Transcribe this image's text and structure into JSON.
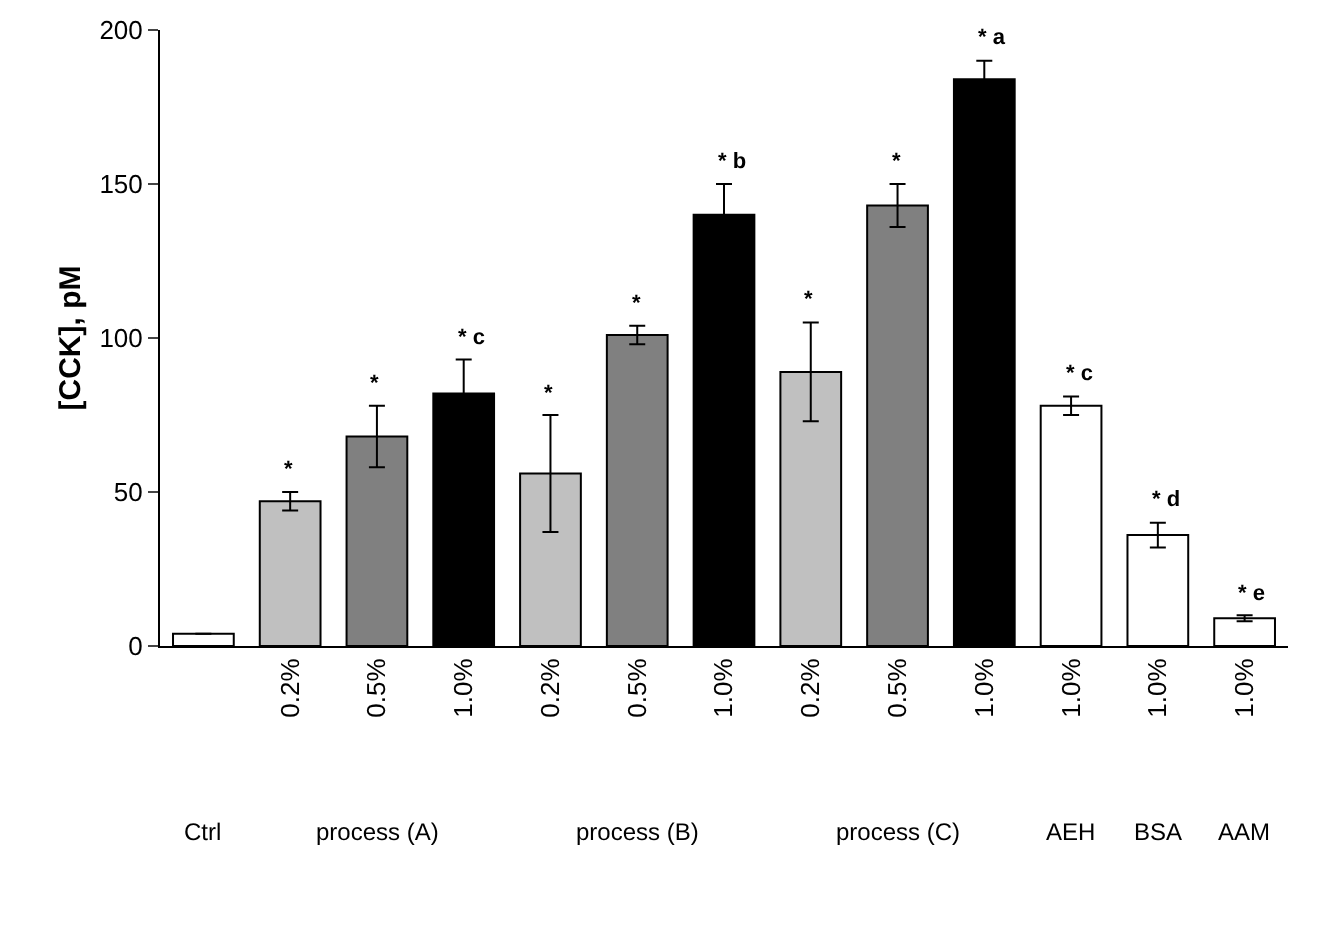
{
  "chart_data": {
    "type": "bar",
    "ylabel": "[CCK], pM",
    "categories": [
      null,
      "0.2%",
      "0.5%",
      "1.0%",
      "0.2%",
      "0.5%",
      "1.0%",
      "0.2%",
      "0.5%",
      "1.0%",
      "1.0%",
      "1.0%",
      "1.0%"
    ],
    "values": [
      4,
      47,
      68,
      82,
      56,
      101,
      140,
      89,
      143,
      184,
      78,
      36,
      9
    ],
    "errors": [
      null,
      3,
      10,
      11,
      19,
      3,
      10,
      16,
      7,
      6,
      3,
      4,
      1
    ],
    "colors": [
      "#ffffff",
      "#c0c0c0",
      "#808080",
      "#000000",
      "#c0c0c0",
      "#808080",
      "#000000",
      "#c0c0c0",
      "#808080",
      "#000000",
      "#ffffff",
      "#ffffff",
      "#ffffff"
    ],
    "value_labels": [
      null,
      "*",
      "*",
      "* c",
      "*",
      "*",
      "* b",
      "*",
      "*",
      "* a",
      "* c",
      "* d",
      "* e"
    ],
    "annotations": [
      "Ctrl",
      "process (A)",
      "process (B)",
      "process (C)",
      "AEH",
      "BSA",
      "AAM"
    ],
    "ylim": [
      0,
      200
    ],
    "yticks": [
      0,
      50,
      100,
      150,
      200
    ]
  }
}
